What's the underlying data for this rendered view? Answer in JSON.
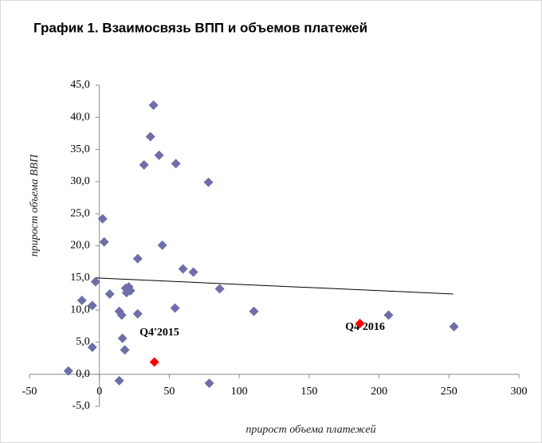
{
  "chart_data": {
    "type": "scatter",
    "title": "График 1. Взаимосвязь ВПП и объемов платежей",
    "x_label": "прирост объема платежей",
    "y_label": "прирост объема ВВП",
    "xlim": [
      -50,
      300
    ],
    "xticks": [
      -50,
      0,
      50,
      100,
      150,
      200,
      250,
      300
    ],
    "ylim": [
      -5,
      45
    ],
    "yticks": [
      {
        "value": -5,
        "label": "-5,0"
      },
      {
        "value": 0,
        "label": "0,0"
      },
      {
        "value": 5,
        "label": "5,0"
      },
      {
        "value": 10,
        "label": "10,0"
      },
      {
        "value": 15,
        "label": "15,0"
      },
      {
        "value": 20,
        "label": "20,0"
      },
      {
        "value": 25,
        "label": "25,0"
      },
      {
        "value": 30,
        "label": "30,0"
      },
      {
        "value": 35,
        "label": "35,0"
      },
      {
        "value": 40,
        "label": "40,0"
      },
      {
        "value": 45,
        "label": "45,0"
      }
    ],
    "series": [
      {
        "color": "#6e6ea8",
        "x": [
          38.7,
          36.5,
          42.7,
          31.9,
          54.7,
          78,
          2.3,
          3.4,
          27.4,
          45,
          59.8,
          67.2,
          -2.8,
          7.4,
          18.8,
          21,
          19.4,
          22.2,
          86,
          -12.5,
          -5.1,
          14.2,
          16,
          27.4,
          54.1,
          110.5,
          206.8,
          253.6,
          16.5,
          18.2,
          -5.1,
          -22.2,
          14.2,
          78.6
        ],
        "values": [
          41.9,
          37.0,
          34.1,
          32.6,
          32.8,
          29.9,
          24.2,
          20.6,
          18.0,
          20.1,
          16.4,
          15.9,
          14.4,
          12.5,
          13.4,
          13.6,
          12.7,
          13.0,
          13.3,
          11.5,
          10.7,
          9.8,
          9.2,
          9.4,
          10.3,
          9.8,
          9.2,
          7.4,
          5.6,
          3.8,
          4.2,
          0.5,
          -1.0,
          -1.4
        ]
      },
      {
        "color": "#ff0000",
        "x": [
          39.3,
          186.3
        ],
        "values": [
          1.9,
          7.9
        ]
      }
    ],
    "trendline": {
      "color": "#000000",
      "x": [
        -3,
        253
      ],
      "values": [
        15.0,
        12.5
      ]
    },
    "annotations": [
      "Q4'2015",
      "Q4'2016"
    ]
  }
}
